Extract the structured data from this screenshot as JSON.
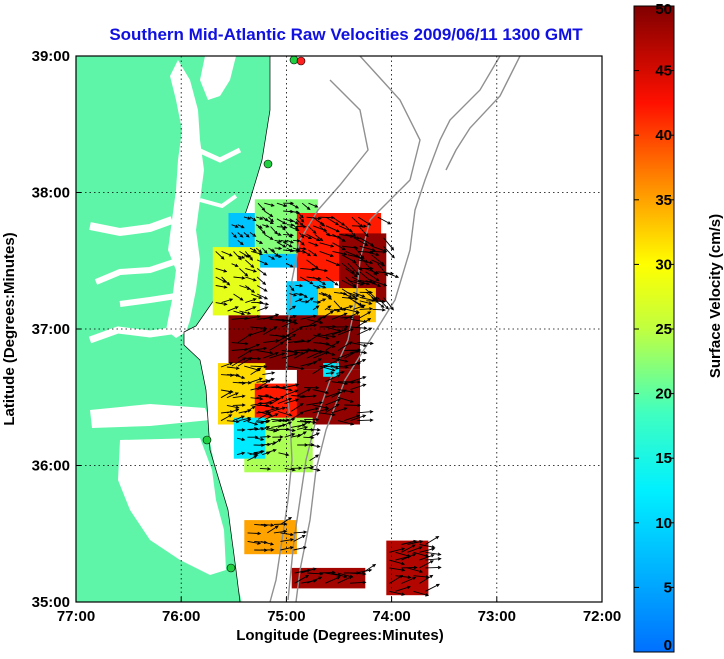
{
  "title": "Southern Mid-Atlantic Raw Velocities 2009/06/11 1300 GMT",
  "x_axis": {
    "label": "Longitude (Degrees:Minutes)",
    "ticks": [
      "77:00",
      "76:00",
      "75:00",
      "74:00",
      "73:00",
      "72:00"
    ]
  },
  "y_axis": {
    "label": "Latitude (Degrees:Minutes)",
    "ticks": [
      "39:00",
      "38:00",
      "37:00",
      "36:00",
      "35:00"
    ]
  },
  "colorbar": {
    "label": "Surface Velocity (cm/s)",
    "ticks": [
      "50",
      "45",
      "40",
      "35",
      "30",
      "25",
      "20",
      "15",
      "10",
      "5",
      "0"
    ],
    "range": [
      0,
      50
    ],
    "colormap": "jet"
  },
  "map": {
    "lon_range": [
      -77,
      -72
    ],
    "lat_range": [
      35,
      39
    ],
    "grid": true,
    "land_color": "#5ef5a8",
    "water_color": "#ffffff",
    "bathymetry_color": "#909090",
    "arrow_color": "#000000",
    "station_icons": [
      "station-icon",
      "station-icon",
      "station-icon",
      "station-icon",
      "station-icon-red"
    ]
  },
  "chart_data": {
    "type": "heatmap",
    "title": "Southern Mid-Atlantic Raw Velocities 2009/06/11 1300 GMT",
    "xlabel": "Longitude (Degrees:Minutes)",
    "ylabel": "Latitude (Degrees:Minutes)",
    "xlim": [
      -77,
      -72
    ],
    "ylim": [
      35,
      39
    ],
    "zlabel": "Surface Velocity (cm/s)",
    "zlim": [
      0,
      50
    ],
    "colormap": "jet",
    "regions": [
      {
        "lon": [
          -75.55,
          -74.85
        ],
        "lat": [
          37.45,
          37.85
        ],
        "speed": 8
      },
      {
        "lon": [
          -75.3,
          -74.7
        ],
        "lat": [
          37.55,
          37.95
        ],
        "speed": 22
      },
      {
        "lon": [
          -74.9,
          -74.1
        ],
        "lat": [
          37.35,
          37.85
        ],
        "speed": 42
      },
      {
        "lon": [
          -74.5,
          -74.05
        ],
        "lat": [
          37.2,
          37.7
        ],
        "speed": 49
      },
      {
        "lon": [
          -75.0,
          -74.55
        ],
        "lat": [
          37.05,
          37.35
        ],
        "speed": 9
      },
      {
        "lon": [
          -74.7,
          -74.15
        ],
        "lat": [
          37.05,
          37.3
        ],
        "speed": 33
      },
      {
        "lon": [
          -75.7,
          -75.25
        ],
        "lat": [
          37.1,
          37.6
        ],
        "speed": 28
      },
      {
        "lon": [
          -75.55,
          -74.3
        ],
        "lat": [
          36.7,
          37.1
        ],
        "speed": 50
      },
      {
        "lon": [
          -75.65,
          -75.2
        ],
        "lat": [
          36.3,
          36.75
        ],
        "speed": 32
      },
      {
        "lon": [
          -75.3,
          -74.8
        ],
        "lat": [
          36.25,
          36.6
        ],
        "speed": 42
      },
      {
        "lon": [
          -74.9,
          -74.3
        ],
        "lat": [
          36.3,
          36.7
        ],
        "speed": 49
      },
      {
        "lon": [
          -75.4,
          -74.75
        ],
        "lat": [
          35.95,
          36.35
        ],
        "speed": 24
      },
      {
        "lon": [
          -75.5,
          -75.2
        ],
        "lat": [
          36.05,
          36.35
        ],
        "speed": 12
      },
      {
        "lon": [
          -74.65,
          -74.5
        ],
        "lat": [
          36.65,
          36.75
        ],
        "speed": 12
      },
      {
        "lon": [
          -75.4,
          -74.9
        ],
        "lat": [
          35.35,
          35.6
        ],
        "speed": 35
      },
      {
        "lon": [
          -74.95,
          -74.25
        ],
        "lat": [
          35.1,
          35.25
        ],
        "speed": 48
      },
      {
        "lon": [
          -74.05,
          -73.65
        ],
        "lat": [
          35.05,
          35.45
        ],
        "speed": 47
      }
    ]
  }
}
